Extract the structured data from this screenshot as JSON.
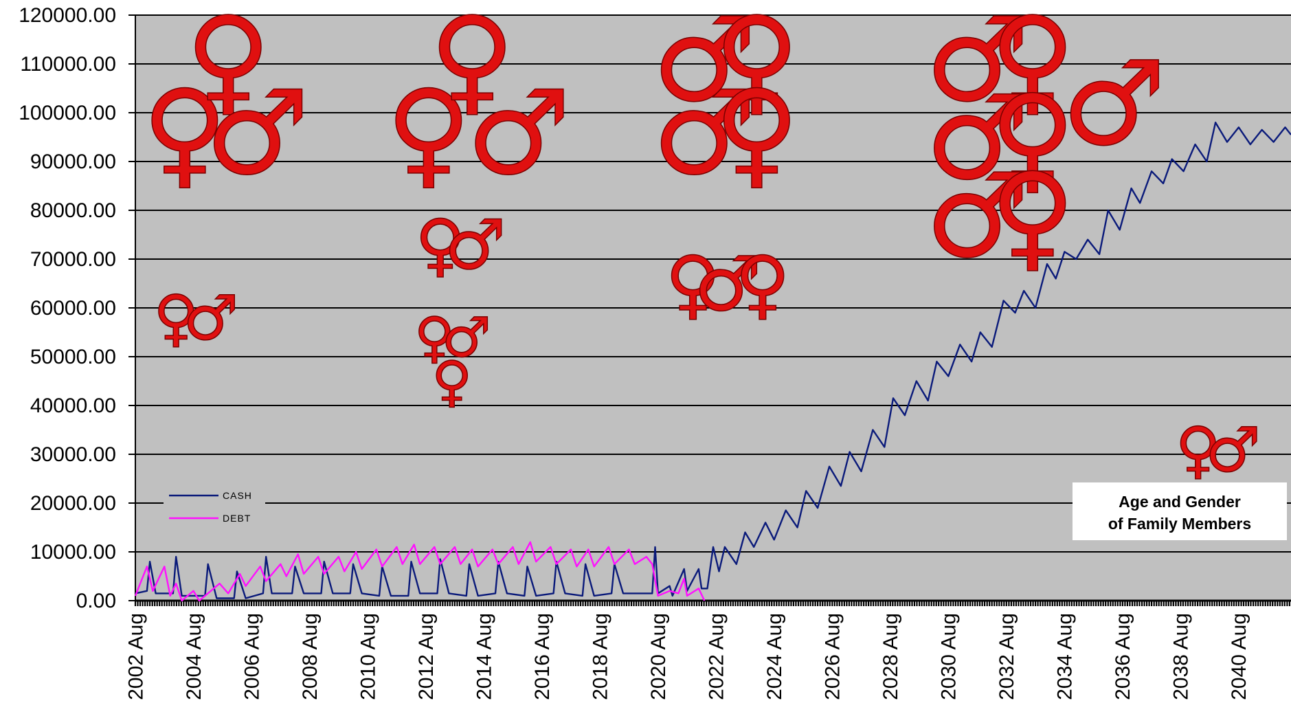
{
  "chart_data": {
    "type": "line",
    "title": "",
    "xlabel": "",
    "ylabel": "",
    "ylim": [
      0,
      120000
    ],
    "y_ticks": [
      "120000.00",
      "110000.00",
      "100000.00",
      "90000.00",
      "80000.00",
      "70000.00",
      "60000.00",
      "50000.00",
      "40000.00",
      "30000.00",
      "20000.00",
      "10000.00",
      "0.00"
    ],
    "x_range": [
      2002.6,
      2042.4
    ],
    "x_tick_labels": [
      "2002 Aug",
      "2004 Aug",
      "2006 Aug",
      "2008 Aug",
      "2010 Aug",
      "2012 Aug",
      "2014 Aug",
      "2016 Aug",
      "2018 Aug",
      "2020 Aug",
      "2022 Aug",
      "2024 Aug",
      "2026 Aug",
      "2028 Aug",
      "2030 Aug",
      "2032 Aug",
      "2034 Aug",
      "2036 Aug",
      "2038 Aug",
      "2040 Aug"
    ],
    "grid": "horizontal",
    "legend_placement": "bottom-left",
    "series": [
      {
        "name": "CASH",
        "color": "#0a1a7a",
        "points": [
          [
            2002.6,
            1500
          ],
          [
            2003.0,
            2000
          ],
          [
            2003.1,
            8000
          ],
          [
            2003.3,
            1500
          ],
          [
            2003.9,
            1500
          ],
          [
            2004.0,
            9000
          ],
          [
            2004.2,
            1000
          ],
          [
            2005.0,
            1000
          ],
          [
            2005.1,
            7500
          ],
          [
            2005.4,
            500
          ],
          [
            2006.0,
            500
          ],
          [
            2006.1,
            6000
          ],
          [
            2006.4,
            500
          ],
          [
            2007.0,
            1500
          ],
          [
            2007.1,
            9000
          ],
          [
            2007.3,
            1500
          ],
          [
            2008.0,
            1500
          ],
          [
            2008.1,
            7000
          ],
          [
            2008.4,
            1500
          ],
          [
            2009.0,
            1500
          ],
          [
            2009.1,
            8000
          ],
          [
            2009.4,
            1500
          ],
          [
            2010.0,
            1500
          ],
          [
            2010.1,
            7500
          ],
          [
            2010.4,
            1500
          ],
          [
            2011.0,
            1000
          ],
          [
            2011.1,
            7000
          ],
          [
            2011.4,
            1000
          ],
          [
            2012.0,
            1000
          ],
          [
            2012.1,
            8000
          ],
          [
            2012.4,
            1500
          ],
          [
            2013.0,
            1500
          ],
          [
            2013.1,
            8500
          ],
          [
            2013.4,
            1500
          ],
          [
            2014.0,
            1000
          ],
          [
            2014.1,
            7500
          ],
          [
            2014.4,
            1000
          ],
          [
            2015.0,
            1500
          ],
          [
            2015.1,
            8000
          ],
          [
            2015.4,
            1500
          ],
          [
            2016.0,
            1000
          ],
          [
            2016.1,
            7000
          ],
          [
            2016.4,
            1000
          ],
          [
            2017.0,
            1500
          ],
          [
            2017.1,
            8000
          ],
          [
            2017.4,
            1500
          ],
          [
            2018.0,
            1000
          ],
          [
            2018.1,
            7500
          ],
          [
            2018.4,
            1000
          ],
          [
            2019.0,
            1500
          ],
          [
            2019.1,
            7500
          ],
          [
            2019.4,
            1500
          ],
          [
            2020.4,
            1500
          ],
          [
            2020.5,
            11000
          ],
          [
            2020.6,
            1500
          ],
          [
            2021.0,
            3000
          ],
          [
            2021.1,
            1000
          ],
          [
            2021.5,
            6500
          ],
          [
            2021.6,
            2000
          ],
          [
            2022.0,
            6500
          ],
          [
            2022.1,
            2500
          ],
          [
            2022.3,
            2500
          ],
          [
            2022.5,
            11000
          ],
          [
            2022.7,
            6000
          ],
          [
            2022.9,
            11000
          ],
          [
            2023.3,
            7500
          ],
          [
            2023.6,
            14000
          ],
          [
            2023.9,
            11000
          ],
          [
            2024.3,
            16000
          ],
          [
            2024.6,
            12500
          ],
          [
            2025.0,
            18500
          ],
          [
            2025.4,
            15000
          ],
          [
            2025.7,
            22500
          ],
          [
            2026.1,
            19000
          ],
          [
            2026.5,
            27500
          ],
          [
            2026.9,
            23500
          ],
          [
            2027.2,
            30500
          ],
          [
            2027.6,
            26500
          ],
          [
            2028.0,
            35000
          ],
          [
            2028.4,
            31500
          ],
          [
            2028.7,
            41500
          ],
          [
            2029.1,
            38000
          ],
          [
            2029.5,
            45000
          ],
          [
            2029.9,
            41000
          ],
          [
            2030.2,
            49000
          ],
          [
            2030.6,
            46000
          ],
          [
            2031.0,
            52500
          ],
          [
            2031.4,
            49000
          ],
          [
            2031.7,
            55000
          ],
          [
            2032.1,
            52000
          ],
          [
            2032.5,
            61500
          ],
          [
            2032.9,
            59000
          ],
          [
            2033.2,
            63500
          ],
          [
            2033.6,
            60000
          ],
          [
            2034.0,
            69000
          ],
          [
            2034.3,
            66000
          ],
          [
            2034.6,
            71500
          ],
          [
            2035.0,
            70000
          ],
          [
            2035.4,
            74000
          ],
          [
            2035.8,
            71000
          ],
          [
            2036.1,
            80000
          ],
          [
            2036.5,
            76000
          ],
          [
            2036.9,
            84500
          ],
          [
            2037.2,
            81500
          ],
          [
            2037.6,
            88000
          ],
          [
            2038.0,
            85500
          ],
          [
            2038.3,
            90500
          ],
          [
            2038.7,
            88000
          ],
          [
            2039.1,
            93500
          ],
          [
            2039.5,
            90000
          ],
          [
            2039.8,
            98000
          ],
          [
            2040.2,
            94000
          ],
          [
            2040.6,
            97000
          ],
          [
            2041.0,
            93500
          ],
          [
            2041.4,
            96500
          ],
          [
            2041.8,
            94000
          ],
          [
            2042.2,
            97000
          ],
          [
            2042.4,
            95500
          ]
        ]
      },
      {
        "name": "DEBT",
        "color": "#ff10ff",
        "points": [
          [
            2002.6,
            1000
          ],
          [
            2003.0,
            7000
          ],
          [
            2003.2,
            2000
          ],
          [
            2003.6,
            7000
          ],
          [
            2003.8,
            1000
          ],
          [
            2004.0,
            3500
          ],
          [
            2004.2,
            0
          ],
          [
            2004.6,
            2000
          ],
          [
            2004.8,
            0
          ],
          [
            2005.5,
            3500
          ],
          [
            2005.8,
            1500
          ],
          [
            2006.2,
            5500
          ],
          [
            2006.4,
            3000
          ],
          [
            2006.9,
            7000
          ],
          [
            2007.1,
            4000
          ],
          [
            2007.6,
            7500
          ],
          [
            2007.8,
            5000
          ],
          [
            2008.2,
            9500
          ],
          [
            2008.4,
            5500
          ],
          [
            2008.9,
            9000
          ],
          [
            2009.1,
            5500
          ],
          [
            2009.6,
            9000
          ],
          [
            2009.8,
            6000
          ],
          [
            2010.2,
            10000
          ],
          [
            2010.4,
            6500
          ],
          [
            2010.9,
            10500
          ],
          [
            2011.1,
            7000
          ],
          [
            2011.6,
            11000
          ],
          [
            2011.8,
            7500
          ],
          [
            2012.2,
            11500
          ],
          [
            2012.4,
            7500
          ],
          [
            2012.9,
            11000
          ],
          [
            2013.1,
            7500
          ],
          [
            2013.6,
            11000
          ],
          [
            2013.8,
            7500
          ],
          [
            2014.2,
            10500
          ],
          [
            2014.4,
            7000
          ],
          [
            2014.9,
            10500
          ],
          [
            2015.1,
            7500
          ],
          [
            2015.6,
            11000
          ],
          [
            2015.8,
            7500
          ],
          [
            2016.2,
            12000
          ],
          [
            2016.4,
            8000
          ],
          [
            2016.9,
            11000
          ],
          [
            2017.1,
            7500
          ],
          [
            2017.6,
            10500
          ],
          [
            2017.8,
            7000
          ],
          [
            2018.2,
            10500
          ],
          [
            2018.4,
            7000
          ],
          [
            2018.9,
            11000
          ],
          [
            2019.1,
            7500
          ],
          [
            2019.6,
            10500
          ],
          [
            2019.8,
            7500
          ],
          [
            2020.2,
            9000
          ],
          [
            2020.4,
            7500
          ],
          [
            2020.6,
            1000
          ],
          [
            2021.0,
            2000
          ],
          [
            2021.3,
            1500
          ],
          [
            2021.5,
            4500
          ],
          [
            2021.6,
            1000
          ],
          [
            2022.0,
            2500
          ],
          [
            2022.2,
            0
          ]
        ]
      }
    ],
    "annotation": "Age and Gender of Family Members"
  },
  "legend": {
    "cash_label": "CASH",
    "debt_label": "DEBT"
  },
  "symbols": [
    {
      "glyph": "♀",
      "col": 2004.3,
      "yv": 96000,
      "size": 170
    },
    {
      "glyph": "♀",
      "col": 2005.8,
      "yv": 111000,
      "size": 170
    },
    {
      "glyph": "♂",
      "col": 2006.8,
      "yv": 96000,
      "size": 170
    },
    {
      "glyph": "♀",
      "col": 2004.0,
      "yv": 58000,
      "size": 90
    },
    {
      "glyph": "♂",
      "col": 2005.2,
      "yv": 58000,
      "size": 90
    },
    {
      "glyph": "♀",
      "col": 2012.7,
      "yv": 96000,
      "size": 170
    },
    {
      "glyph": "♀",
      "col": 2014.2,
      "yv": 111000,
      "size": 170
    },
    {
      "glyph": "♂",
      "col": 2015.8,
      "yv": 96000,
      "size": 170
    },
    {
      "glyph": "♀",
      "col": 2013.1,
      "yv": 73000,
      "size": 100
    },
    {
      "glyph": "♂",
      "col": 2014.3,
      "yv": 73000,
      "size": 100
    },
    {
      "glyph": "♀",
      "col": 2012.9,
      "yv": 54000,
      "size": 80
    },
    {
      "glyph": "♂",
      "col": 2014.0,
      "yv": 54000,
      "size": 80
    },
    {
      "glyph": "♀",
      "col": 2013.5,
      "yv": 45000,
      "size": 80
    },
    {
      "glyph": "♂",
      "col": 2022.2,
      "yv": 111000,
      "size": 170
    },
    {
      "glyph": "♀",
      "col": 2024.0,
      "yv": 111000,
      "size": 170
    },
    {
      "glyph": "♂",
      "col": 2022.2,
      "yv": 96000,
      "size": 170
    },
    {
      "glyph": "♀",
      "col": 2024.0,
      "yv": 96000,
      "size": 170
    },
    {
      "glyph": "♀",
      "col": 2021.8,
      "yv": 65000,
      "size": 110
    },
    {
      "glyph": "♂",
      "col": 2023.0,
      "yv": 65000,
      "size": 110
    },
    {
      "glyph": "♀",
      "col": 2024.2,
      "yv": 65000,
      "size": 110
    },
    {
      "glyph": "♂",
      "col": 2031.6,
      "yv": 111000,
      "size": 170
    },
    {
      "glyph": "♀",
      "col": 2033.5,
      "yv": 111000,
      "size": 170
    },
    {
      "glyph": "♂",
      "col": 2031.6,
      "yv": 95000,
      "size": 170
    },
    {
      "glyph": "♀",
      "col": 2033.5,
      "yv": 95000,
      "size": 170
    },
    {
      "glyph": "♂",
      "col": 2031.6,
      "yv": 79000,
      "size": 170
    },
    {
      "glyph": "♀",
      "col": 2033.5,
      "yv": 79000,
      "size": 170
    },
    {
      "glyph": "♂",
      "col": 2036.3,
      "yv": 102000,
      "size": 170
    },
    {
      "glyph": "♀",
      "col": 2039.2,
      "yv": 31000,
      "size": 90
    },
    {
      "glyph": "♂",
      "col": 2040.4,
      "yv": 31000,
      "size": 90
    }
  ]
}
